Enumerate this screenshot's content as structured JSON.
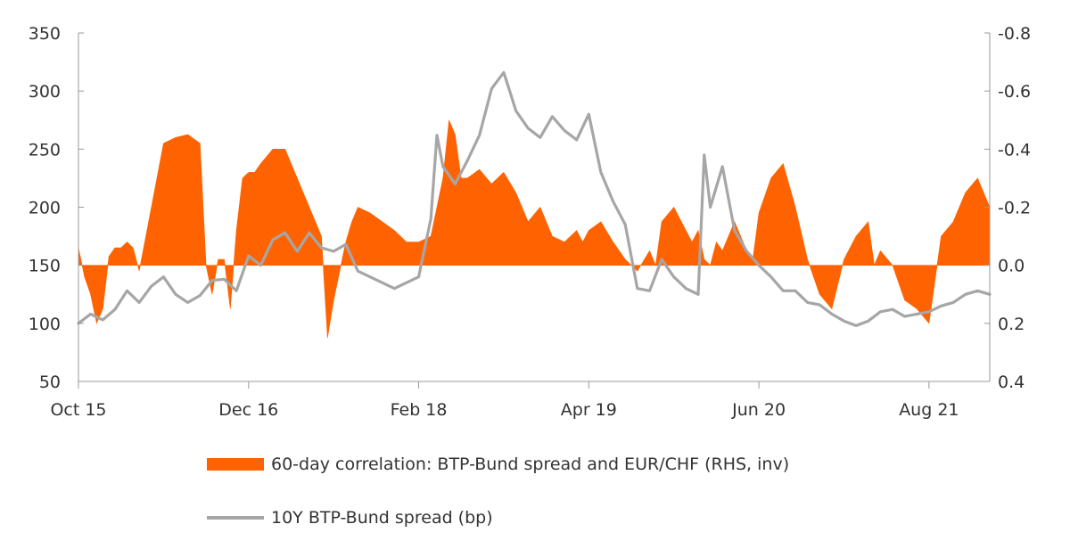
{
  "chart_data": {
    "type": "area",
    "x_tick_labels": [
      "Oct 15",
      "Dec 16",
      "Feb 18",
      "Apr 19",
      "Jun 20",
      "Aug 21"
    ],
    "x_tick_months": [
      0,
      14,
      28,
      42,
      56,
      70
    ],
    "x_range_months": [
      0,
      75
    ],
    "y_left": {
      "ticks": [
        350,
        300,
        250,
        200,
        150,
        100,
        50
      ],
      "range": [
        50,
        350
      ]
    },
    "y_right": {
      "ticks": [
        "-0.8",
        "-0.6",
        "-0.4",
        "-0.2",
        "0.0",
        "0.2",
        "0.4"
      ],
      "range": [
        -0.8,
        0.4
      ],
      "inverted": true
    },
    "grid": false,
    "series": [
      {
        "name": "60-day correlation: BTP-Bund spread and EUR/CHF (RHS, inv)",
        "kind": "area",
        "axis": "right",
        "color": "#ff6200",
        "x": [
          0,
          0.5,
          1,
          1.5,
          2,
          2.5,
          3,
          3.5,
          4,
          4.5,
          5,
          6,
          7,
          8,
          9,
          10,
          10.5,
          11,
          11.5,
          12,
          12.5,
          13,
          13.5,
          14,
          14.5,
          15,
          16,
          17,
          18,
          19,
          20,
          20.5,
          21,
          21.5,
          22,
          22.5,
          23,
          24,
          25,
          26,
          27,
          28,
          29,
          30,
          30.5,
          31,
          31.5,
          32,
          33,
          34,
          35,
          36,
          37,
          38,
          39,
          40,
          41,
          41.5,
          42,
          43,
          44,
          45,
          46,
          47,
          47.5,
          48,
          49,
          50,
          50.5,
          51,
          51.5,
          52,
          52.5,
          53,
          54,
          55,
          55.5,
          56,
          57,
          58,
          59,
          60,
          61,
          62,
          63,
          64,
          65,
          65.5,
          66,
          67,
          68,
          69,
          70,
          71,
          72,
          73,
          74,
          75
        ],
        "y": [
          -0.06,
          0.04,
          0.1,
          0.2,
          0.15,
          -0.03,
          -0.06,
          -0.06,
          -0.08,
          -0.06,
          0.02,
          -0.2,
          -0.42,
          -0.44,
          -0.45,
          -0.42,
          0.0,
          0.1,
          -0.02,
          -0.02,
          0.15,
          -0.12,
          -0.3,
          -0.32,
          -0.32,
          -0.35,
          -0.4,
          -0.4,
          -0.3,
          -0.2,
          -0.1,
          0.25,
          0.12,
          0.02,
          -0.08,
          -0.15,
          -0.2,
          -0.18,
          -0.15,
          -0.12,
          -0.08,
          -0.08,
          -0.1,
          -0.3,
          -0.5,
          -0.45,
          -0.3,
          -0.3,
          -0.33,
          -0.28,
          -0.32,
          -0.25,
          -0.15,
          -0.2,
          -0.1,
          -0.08,
          -0.12,
          -0.08,
          -0.12,
          -0.15,
          -0.08,
          -0.02,
          0.02,
          -0.05,
          0.0,
          -0.15,
          -0.2,
          -0.12,
          -0.08,
          -0.12,
          -0.02,
          0.0,
          -0.08,
          -0.05,
          -0.15,
          -0.05,
          -0.02,
          -0.18,
          -0.3,
          -0.35,
          -0.2,
          -0.02,
          0.1,
          0.15,
          -0.02,
          -0.1,
          -0.15,
          0.0,
          -0.05,
          0.0,
          0.12,
          0.15,
          0.2,
          -0.1,
          -0.15,
          -0.25,
          -0.3,
          -0.2
        ]
      },
      {
        "name": "10Y BTP-Bund spread (bp)",
        "kind": "line",
        "axis": "left",
        "color": "#a6a6a6",
        "x": [
          0,
          1,
          2,
          3,
          4,
          5,
          6,
          7,
          8,
          9,
          10,
          11,
          12,
          13,
          14,
          15,
          16,
          17,
          18,
          19,
          20,
          21,
          22,
          23,
          24,
          25,
          26,
          27,
          28,
          29,
          29.5,
          30,
          31,
          32,
          33,
          34,
          35,
          35.5,
          36,
          37,
          38,
          39,
          40,
          41,
          42,
          43,
          44,
          45,
          46,
          47,
          48,
          49,
          50,
          51,
          51.5,
          52,
          53,
          54,
          55,
          56,
          57,
          58,
          59,
          60,
          61,
          62,
          63,
          64,
          65,
          66,
          67,
          68,
          69,
          70,
          71,
          72,
          73,
          74,
          75
        ],
        "y": [
          100,
          108,
          103,
          112,
          128,
          118,
          132,
          140,
          125,
          118,
          124,
          137,
          138,
          128,
          158,
          150,
          172,
          178,
          162,
          178,
          165,
          162,
          168,
          145,
          140,
          135,
          130,
          135,
          140,
          190,
          262,
          235,
          220,
          240,
          262,
          302,
          316,
          300,
          283,
          268,
          260,
          278,
          266,
          258,
          280,
          230,
          205,
          185,
          130,
          128,
          155,
          140,
          130,
          125,
          245,
          200,
          235,
          180,
          162,
          150,
          140,
          128,
          128,
          118,
          116,
          108,
          102,
          98,
          102,
          110,
          112,
          106,
          108,
          110,
          115,
          118,
          125,
          128,
          125
        ]
      }
    ]
  }
}
